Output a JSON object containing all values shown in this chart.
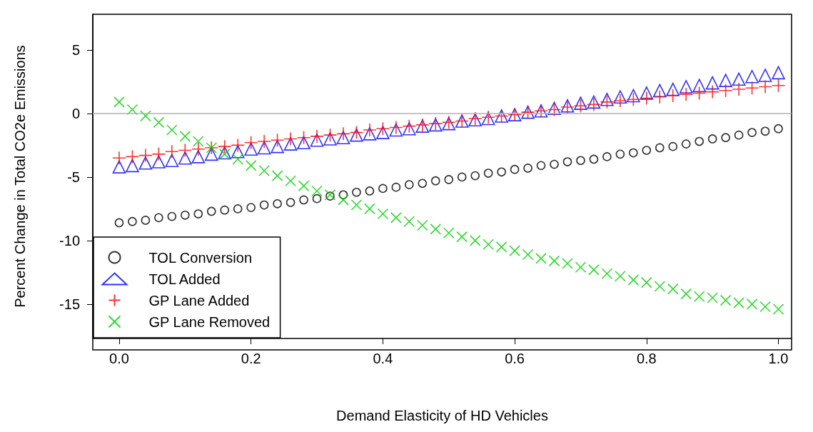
{
  "chart_data": {
    "type": "scatter",
    "xlabel": "Demand Elasticity of HD Vehicles",
    "ylabel": "Percent Change in Total CO2e Emissions",
    "x": [
      0,
      0.02,
      0.04,
      0.06,
      0.08,
      0.1,
      0.12,
      0.14,
      0.16,
      0.18,
      0.2,
      0.22,
      0.24,
      0.26,
      0.28,
      0.3,
      0.32,
      0.34,
      0.36,
      0.38,
      0.4,
      0.42,
      0.44,
      0.46,
      0.48,
      0.5,
      0.52,
      0.54,
      0.56,
      0.58,
      0.6,
      0.62,
      0.64,
      0.66,
      0.68,
      0.7,
      0.72,
      0.74,
      0.76,
      0.78,
      0.8,
      0.82,
      0.84,
      0.86,
      0.88,
      0.9,
      0.92,
      0.94,
      0.96,
      0.98,
      1
    ],
    "series": [
      {
        "name": "TOL Conversion",
        "color": "#000000",
        "marker": "circle",
        "values": [
          -8.6,
          -8.5,
          -8.4,
          -8.2,
          -8.1,
          -8.0,
          -7.9,
          -7.7,
          -7.6,
          -7.5,
          -7.4,
          -7.2,
          -7.1,
          -7.0,
          -6.8,
          -6.7,
          -6.5,
          -6.4,
          -6.2,
          -6.1,
          -5.9,
          -5.8,
          -5.6,
          -5.5,
          -5.3,
          -5.2,
          -5.0,
          -4.9,
          -4.7,
          -4.6,
          -4.4,
          -4.3,
          -4.1,
          -4.0,
          -3.8,
          -3.7,
          -3.6,
          -3.4,
          -3.2,
          -3.1,
          -2.9,
          -2.7,
          -2.6,
          -2.4,
          -2.2,
          -2.0,
          -1.9,
          -1.7,
          -1.5,
          -1.4,
          -1.2
        ]
      },
      {
        "name": "TOL Added",
        "color": "#0000ff",
        "marker": "triangle",
        "values": [
          -4.2,
          -4.1,
          -3.9,
          -3.8,
          -3.7,
          -3.5,
          -3.4,
          -3.2,
          -3.1,
          -3.0,
          -2.8,
          -2.7,
          -2.6,
          -2.4,
          -2.3,
          -2.1,
          -2.0,
          -1.9,
          -1.7,
          -1.6,
          -1.5,
          -1.3,
          -1.2,
          -1.0,
          -0.9,
          -0.8,
          -0.6,
          -0.5,
          -0.4,
          -0.2,
          -0.1,
          0.1,
          0.2,
          0.4,
          0.6,
          0.8,
          0.9,
          1.1,
          1.3,
          1.4,
          1.6,
          1.8,
          1.9,
          2.1,
          2.2,
          2.4,
          2.6,
          2.7,
          2.9,
          3.0,
          3.2
        ]
      },
      {
        "name": "GP Lane Added",
        "color": "#ff0000",
        "marker": "plus",
        "values": [
          -3.5,
          -3.4,
          -3.3,
          -3.2,
          -3.0,
          -2.9,
          -2.8,
          -2.7,
          -2.6,
          -2.5,
          -2.3,
          -2.2,
          -2.1,
          -2.0,
          -1.9,
          -1.8,
          -1.7,
          -1.6,
          -1.5,
          -1.3,
          -1.2,
          -1.1,
          -1.0,
          -0.9,
          -0.8,
          -0.7,
          -0.6,
          -0.4,
          -0.3,
          -0.2,
          -0.1,
          0.1,
          0.2,
          0.3,
          0.5,
          0.6,
          0.7,
          0.9,
          1.0,
          1.1,
          1.2,
          1.3,
          1.4,
          1.5,
          1.6,
          1.7,
          1.8,
          1.9,
          2.0,
          2.1,
          2.2
        ]
      },
      {
        "name": "GP Lane Removed",
        "color": "#00cc00",
        "marker": "cross",
        "values": [
          0.9,
          0.3,
          -0.2,
          -0.7,
          -1.3,
          -1.8,
          -2.2,
          -2.7,
          -3.2,
          -3.6,
          -4.1,
          -4.5,
          -4.9,
          -5.3,
          -5.7,
          -6.1,
          -6.4,
          -6.8,
          -7.2,
          -7.5,
          -7.9,
          -8.2,
          -8.5,
          -8.8,
          -9.1,
          -9.4,
          -9.7,
          -10.0,
          -10.3,
          -10.5,
          -10.8,
          -11.1,
          -11.4,
          -11.6,
          -11.8,
          -12.1,
          -12.3,
          -12.6,
          -12.8,
          -13.1,
          -13.3,
          -13.6,
          -13.8,
          -14.2,
          -14.4,
          -14.5,
          -14.7,
          -14.9,
          -15.0,
          -15.2,
          -15.4
        ]
      }
    ],
    "xlim": [
      -0.04,
      1.02
    ],
    "xticks": [
      {
        "value": 0,
        "label": "0.0"
      },
      {
        "value": 0.2,
        "label": "0.2"
      },
      {
        "value": 0.4,
        "label": "0.4"
      },
      {
        "value": 0.6,
        "label": "0.6"
      },
      {
        "value": 0.8,
        "label": "0.8"
      },
      {
        "value": 1,
        "label": "1.0"
      }
    ],
    "ylim": [
      -17.7,
      7.8
    ],
    "yticks": [
      -15,
      -10,
      -5,
      0,
      5
    ],
    "ref_lines": [
      {
        "axis": "y",
        "value": 0,
        "color": "#b0b0b0"
      }
    ],
    "grid": false,
    "legend": "bottom left"
  }
}
